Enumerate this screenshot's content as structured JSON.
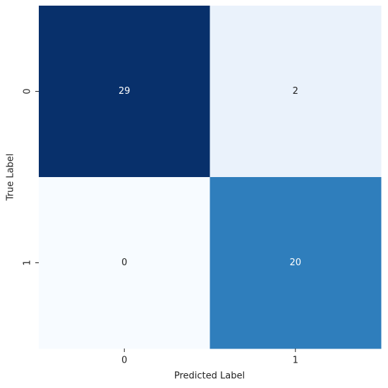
{
  "chart_data": {
    "type": "heatmap",
    "x_label": "Predicted Label",
    "y_label": "True Label",
    "x_categories": [
      "0",
      "1"
    ],
    "y_categories": [
      "0",
      "1"
    ],
    "values": [
      [
        29,
        2
      ],
      [
        0,
        20
      ]
    ],
    "colors": [
      [
        "#08306b",
        "#eaf2fb"
      ],
      [
        "#f7fbff",
        "#2f7ebc"
      ]
    ]
  }
}
